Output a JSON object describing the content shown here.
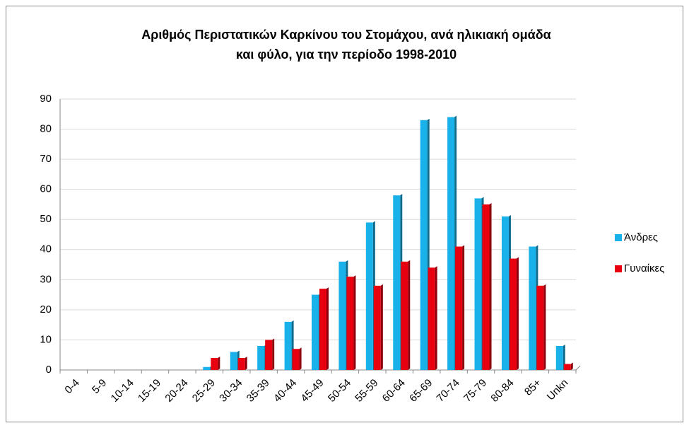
{
  "chart_data": {
    "type": "bar",
    "title": [
      "Αριθμός Περιστατικών Καρκίνου του Στομάχου, ανά ηλικιακή ομάδα",
      "και φύλο, για την περίοδο 1998-2010"
    ],
    "categories": [
      "0-4",
      "5-9",
      "10-14",
      "15-19",
      "20-24",
      "25-29",
      "30-34",
      "35-39",
      "40-44",
      "45-49",
      "50-54",
      "55-59",
      "60-64",
      "65-69",
      "70-74",
      "75-79",
      "80-84",
      "85+",
      "Unkn"
    ],
    "series": [
      {
        "name": "Άνδρες",
        "color": "#19b1ea",
        "values": [
          0,
          0,
          0,
          0,
          0,
          1,
          6,
          8,
          16,
          25,
          36,
          49,
          58,
          83,
          84,
          57,
          51,
          41,
          8
        ]
      },
      {
        "name": "Γυναίκες",
        "color": "#e80010",
        "values": [
          0,
          0,
          0,
          0,
          0,
          4,
          4,
          10,
          7,
          27,
          31,
          28,
          36,
          34,
          41,
          55,
          37,
          28,
          2
        ]
      }
    ],
    "ylim": [
      0,
      90
    ],
    "yticks": [
      0,
      10,
      20,
      30,
      40,
      50,
      60,
      70,
      80,
      90
    ],
    "grid": true,
    "legend": "right"
  }
}
